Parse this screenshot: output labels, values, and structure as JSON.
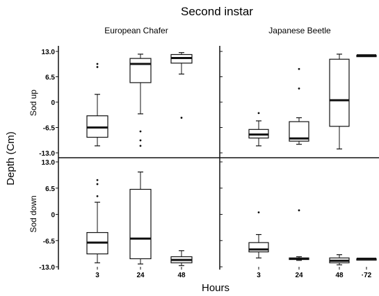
{
  "chart_data": {
    "type": "box",
    "title": "Second instar",
    "xlabel": "Hours",
    "ylabel": "Depth (Cm)",
    "ylim": [
      -13,
      13
    ],
    "yticks": [
      "13.0",
      "6.5",
      "0",
      "-6.5",
      "-13.0"
    ],
    "columns": [
      "European Chafer",
      "Japanese Beetle"
    ],
    "rows": [
      "Sod up",
      "Sod down"
    ],
    "panels": [
      {
        "column": "European Chafer",
        "row": "Sod up",
        "categories": [
          "3",
          "24",
          "48"
        ],
        "boxes": [
          {
            "x": "3",
            "whisker_low": -11.2,
            "q1": -9.0,
            "median": -6.5,
            "q3": -3.5,
            "whisker_high": 2.0,
            "outliers": [
              9.0,
              9.8
            ]
          },
          {
            "x": "24",
            "whisker_low": -3.0,
            "q1": 5.0,
            "median": 9.8,
            "q3": 11.2,
            "whisker_high": 12.3,
            "outliers": [
              -7.5,
              -9.8,
              -11.2
            ]
          },
          {
            "x": "48",
            "whisker_low": 7.2,
            "q1": 10.0,
            "median": 11.3,
            "q3": 12.2,
            "whisker_high": 12.7,
            "outliers": [
              -4.0
            ]
          }
        ]
      },
      {
        "column": "Japanese Beetle",
        "row": "Sod up",
        "categories": [
          "3",
          "24",
          "48",
          "72"
        ],
        "boxes": [
          {
            "x": "3",
            "whisker_low": -11.2,
            "q1": -9.2,
            "median": -8.3,
            "q3": -7.0,
            "whisker_high": -4.8,
            "outliers": [
              -2.8
            ]
          },
          {
            "x": "24",
            "whisker_low": -10.8,
            "q1": -10.0,
            "median": -9.3,
            "q3": -5.0,
            "whisker_high": -4.0,
            "outliers": [
              8.5,
              3.5
            ]
          },
          {
            "x": "48",
            "whisker_low": -12.0,
            "q1": -6.2,
            "median": 0.5,
            "q3": 11.0,
            "whisker_high": 12.3,
            "outliers": []
          },
          {
            "x": "72",
            "whisker_low": 12.0,
            "q1": 12.0,
            "median": 12.0,
            "q3": 12.0,
            "whisker_high": 12.0,
            "outliers": []
          }
        ]
      },
      {
        "column": "European Chafer",
        "row": "Sod down",
        "categories": [
          "3",
          "24",
          "48"
        ],
        "boxes": [
          {
            "x": "3",
            "whisker_low": -12.0,
            "q1": -9.8,
            "median": -7.0,
            "q3": -4.5,
            "whisker_high": 3.0,
            "outliers": [
              8.5,
              7.5,
              4.5
            ]
          },
          {
            "x": "24",
            "whisker_low": -12.3,
            "q1": -11.0,
            "median": -6.0,
            "q3": 6.2,
            "whisker_high": 10.5,
            "outliers": []
          },
          {
            "x": "48",
            "whisker_low": -12.7,
            "q1": -12.0,
            "median": -11.3,
            "q3": -10.5,
            "whisker_high": -9.0,
            "outliers": []
          }
        ]
      },
      {
        "column": "Japanese Beetle",
        "row": "Sod down",
        "categories": [
          "3",
          "24",
          "48",
          "72"
        ],
        "boxes": [
          {
            "x": "3",
            "whisker_low": -10.8,
            "q1": -9.3,
            "median": -8.7,
            "q3": -7.0,
            "whisker_high": -5.0,
            "outliers": [
              0.5
            ]
          },
          {
            "x": "24",
            "whisker_low": -11.4,
            "q1": -11.2,
            "median": -11.0,
            "q3": -10.8,
            "whisker_high": -10.5,
            "outliers": [
              1.0
            ]
          },
          {
            "x": "48",
            "whisker_low": -12.5,
            "q1": -12.0,
            "median": -11.5,
            "q3": -10.8,
            "whisker_high": -10.0,
            "outliers": []
          },
          {
            "x": "72",
            "whisker_low": -11.0,
            "q1": -11.0,
            "median": -11.0,
            "q3": -11.0,
            "whisker_high": -11.0,
            "outliers": []
          }
        ]
      }
    ],
    "xtick_labels": [
      {
        "column": "European Chafer",
        "labels": [
          "3",
          "24",
          "48"
        ]
      },
      {
        "column": "Japanese Beetle",
        "labels": [
          "3",
          "24",
          "48",
          "·72"
        ]
      }
    ]
  }
}
